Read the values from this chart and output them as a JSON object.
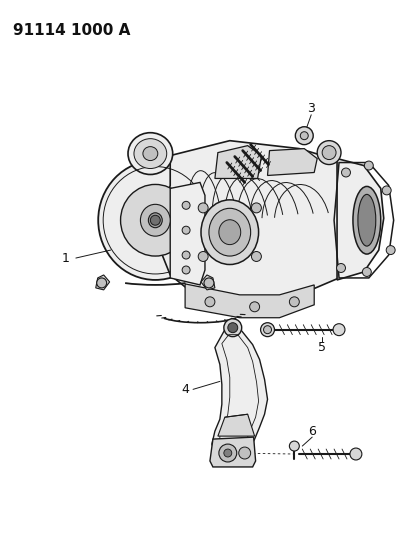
{
  "bg_color": "#ffffff",
  "header_text": "91114 1000 A",
  "header_fontsize": 11,
  "header_fontweight": "bold",
  "label_fontsize": 9,
  "line_color": "#1a1a1a",
  "text_color": "#111111",
  "gray_fill": "#d8d8d8",
  "light_gray": "#eeeeee",
  "mid_gray": "#c0c0c0"
}
